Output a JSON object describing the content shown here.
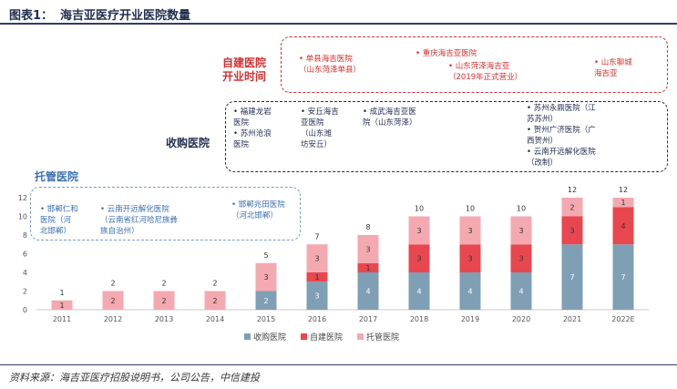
{
  "figure": {
    "label": "图表1：",
    "title": "海吉亚医疗开业医院数量",
    "source": "资料来源：海吉亚医疗招股说明书，公司公告，中信建投"
  },
  "categories_text": {
    "own": "自建医院\n开业时间",
    "acquired": "收购医院",
    "managed": "托管医院"
  },
  "notes": {
    "own": [
      "• 单县海吉医院\n（山东菏泽单县）",
      "• 重庆海吉亚医院",
      "• 山东菏泽海吉亚\n（2019年正式营业）",
      "• 山东聊城\n海吉亚"
    ],
    "acquired": [
      "• 福建龙岩\n医院\n• 苏州沧浪\n医院",
      "• 安丘海吉\n亚医院\n（山东潍\n坊安丘）",
      "• 成武海吉亚医\n院（山东菏泽）",
      "• 苏州永鼎医院（江\n苏苏州）\n• 贺州广济医院（广\n西贺州）\n• 云南开远解化医院\n（改制）"
    ],
    "managed": [
      "• 邯郸仁和\n医院（河\n北邯郸）",
      "• 云南开远解化医院\n（云南省红河哈尼族彝\n族自治州）",
      "• 邯郸兆田医院\n（河北邯郸）"
    ]
  },
  "colors": {
    "acquired": "#7f9fb5",
    "own": "#e8474f",
    "managed": "#f4a9b0",
    "red_text": "#d32f2f",
    "navy": "#1f2d4d"
  },
  "chart_data": {
    "type": "bar",
    "stacked": true,
    "categories": [
      "2011",
      "2012",
      "2013",
      "2014",
      "2015",
      "2016",
      "2017",
      "2018",
      "2019",
      "2020",
      "2021",
      "2022E"
    ],
    "series": [
      {
        "name": "收购医院",
        "values": [
          0,
          0,
          0,
          0,
          2,
          3,
          4,
          4,
          4,
          4,
          7,
          7
        ]
      },
      {
        "name": "自建医院",
        "values": [
          0,
          0,
          0,
          0,
          0,
          1,
          1,
          3,
          3,
          3,
          3,
          4
        ]
      },
      {
        "name": "托管医院",
        "values": [
          1,
          2,
          2,
          2,
          3,
          3,
          3,
          3,
          3,
          3,
          2,
          1
        ]
      }
    ],
    "totals": [
      1,
      2,
      2,
      2,
      5,
      7,
      8,
      10,
      10,
      10,
      12,
      12
    ],
    "ylim": [
      0,
      12
    ],
    "yticks": [
      0,
      2,
      4,
      6,
      8,
      10,
      12
    ],
    "legend_position": "bottom",
    "grid": false
  }
}
